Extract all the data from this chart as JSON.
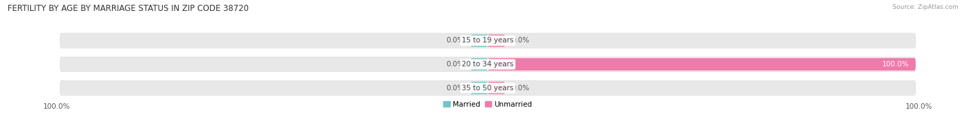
{
  "title": "FERTILITY BY AGE BY MARRIAGE STATUS IN ZIP CODE 38720",
  "source": "Source: ZipAtlas.com",
  "categories": [
    "15 to 19 years",
    "20 to 34 years",
    "35 to 50 years"
  ],
  "married": [
    0.0,
    0.0,
    0.0
  ],
  "unmarried": [
    0.0,
    100.0,
    0.0
  ],
  "married_color": "#72c5c8",
  "unmarried_color": "#f07aaa",
  "row_bg_color": "#e8e8e8",
  "title_fontsize": 8.5,
  "label_fontsize": 7.5,
  "tick_fontsize": 7.5,
  "source_fontsize": 6.5,
  "max_val": 100.0,
  "bottom_left_label": "100.0%",
  "bottom_right_label": "100.0%",
  "figure_bg": "#ffffff",
  "center_label_bg": "#ffffff"
}
